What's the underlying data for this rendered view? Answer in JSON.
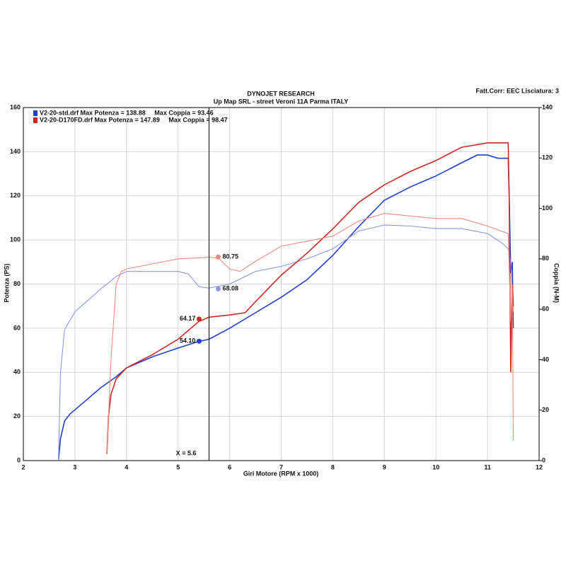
{
  "chart_data": {
    "type": "line",
    "title": "DYNOJET RESEARCH",
    "subtitle": "Up Map SRL - street Veroni 11A Parma ITALY",
    "note": "Fatt.Corr: EEC  Lisciatura: 3",
    "x_label": "Giri Motore (RPM x 1000)",
    "y_label": "Potenza (PS)",
    "y2_label": "Coppia (N-M)",
    "xlim": [
      2,
      12
    ],
    "xticks": [
      2,
      3,
      4,
      5,
      6,
      7,
      8,
      9,
      10,
      11,
      12
    ],
    "ylim": [
      0,
      160
    ],
    "yticks": [
      0,
      20,
      40,
      60,
      80,
      100,
      120,
      140,
      160
    ],
    "y2lim": [
      0,
      140
    ],
    "y2ticks": [
      0,
      20,
      40,
      60,
      80,
      100,
      120,
      140
    ],
    "grid": true,
    "legend": [
      {
        "text": "V2-20-std.drf Max Potenza = 138.88     Max Coppia = 93.46",
        "color": "#1f3fcf"
      },
      {
        "text": "V2-20-D170FD.drf Max Potenza = 147.89     Max Coppia = 98.47",
        "color": "#cc2a22"
      }
    ],
    "series": [
      {
        "color": "#1f3fcf",
        "axis": "y",
        "x": [
          2.68,
          2.72,
          2.8,
          2.9,
          3.0,
          3.2,
          3.5,
          3.8,
          4.0,
          4.5,
          5.0,
          5.4,
          5.6,
          6.0,
          6.5,
          7.0,
          7.5,
          8.0,
          8.5,
          9.0,
          9.5,
          10.0,
          10.5,
          10.8,
          11.0,
          11.2,
          11.4,
          11.42,
          11.45,
          11.48,
          11.5
        ],
        "values": [
          0,
          10,
          18,
          21,
          23,
          27,
          33,
          38,
          42,
          47,
          51,
          54,
          55,
          60,
          67,
          74,
          82,
          93,
          106,
          118,
          124,
          129,
          135,
          138.5,
          138.5,
          137,
          137,
          120,
          85,
          90,
          60
        ]
      },
      {
        "color": "#8a96e8",
        "axis": "y2",
        "x": [
          2.68,
          2.72,
          2.8,
          3.0,
          3.5,
          3.8,
          4.0,
          4.5,
          5.0,
          5.2,
          5.4,
          5.6,
          6.0,
          6.5,
          7.0,
          7.5,
          8.0,
          8.5,
          9.0,
          9.5,
          10.0,
          10.5,
          11.0,
          11.3,
          11.4,
          11.45,
          11.5
        ],
        "values": [
          0,
          35,
          52,
          59,
          68,
          73,
          75,
          75,
          75,
          74,
          69,
          68.4,
          70,
          75,
          77,
          80,
          84,
          91,
          93.4,
          93,
          92,
          92,
          90,
          86,
          84,
          79,
          59
        ]
      },
      {
        "color": "#cc2a22",
        "axis": "y",
        "x": [
          3.62,
          3.65,
          3.7,
          3.8,
          4.0,
          4.5,
          5.0,
          5.4,
          5.6,
          6.0,
          6.3,
          6.5,
          7.0,
          7.5,
          8.0,
          8.5,
          9.0,
          9.5,
          10.0,
          10.5,
          11.0,
          11.4,
          11.42,
          11.45,
          11.48,
          11.5
        ],
        "values": [
          3,
          20,
          30,
          37,
          42,
          48,
          55,
          63,
          65,
          66,
          67,
          72,
          84,
          94,
          105,
          117,
          125,
          131,
          136,
          142,
          144,
          144,
          120,
          40,
          80,
          70
        ]
      },
      {
        "color": "#ef8a80",
        "axis": "y2",
        "x": [
          3.62,
          3.7,
          3.8,
          3.9,
          4.0,
          4.5,
          5.0,
          5.5,
          5.6,
          5.8,
          6.0,
          6.2,
          6.5,
          7.0,
          7.5,
          8.0,
          8.5,
          9.0,
          9.5,
          10.0,
          10.5,
          11.0,
          11.4,
          11.45,
          11.48,
          11.5
        ],
        "values": [
          3,
          40,
          70,
          75,
          76,
          78,
          80,
          80.5,
          80.75,
          80,
          76,
          75,
          79,
          85,
          87,
          89,
          95,
          98,
          97,
          96,
          96,
          93,
          90,
          55,
          70,
          8
        ]
      }
    ],
    "cursor": {
      "x": 5.6,
      "label": "X = 5.6",
      "readouts": [
        {
          "series": 3,
          "value": 80.75
        },
        {
          "series": 1,
          "value": 68.08
        },
        {
          "series": 2,
          "value": 64.17
        },
        {
          "series": 0,
          "value": 54.1,
          "label": "54.10"
        }
      ]
    }
  }
}
